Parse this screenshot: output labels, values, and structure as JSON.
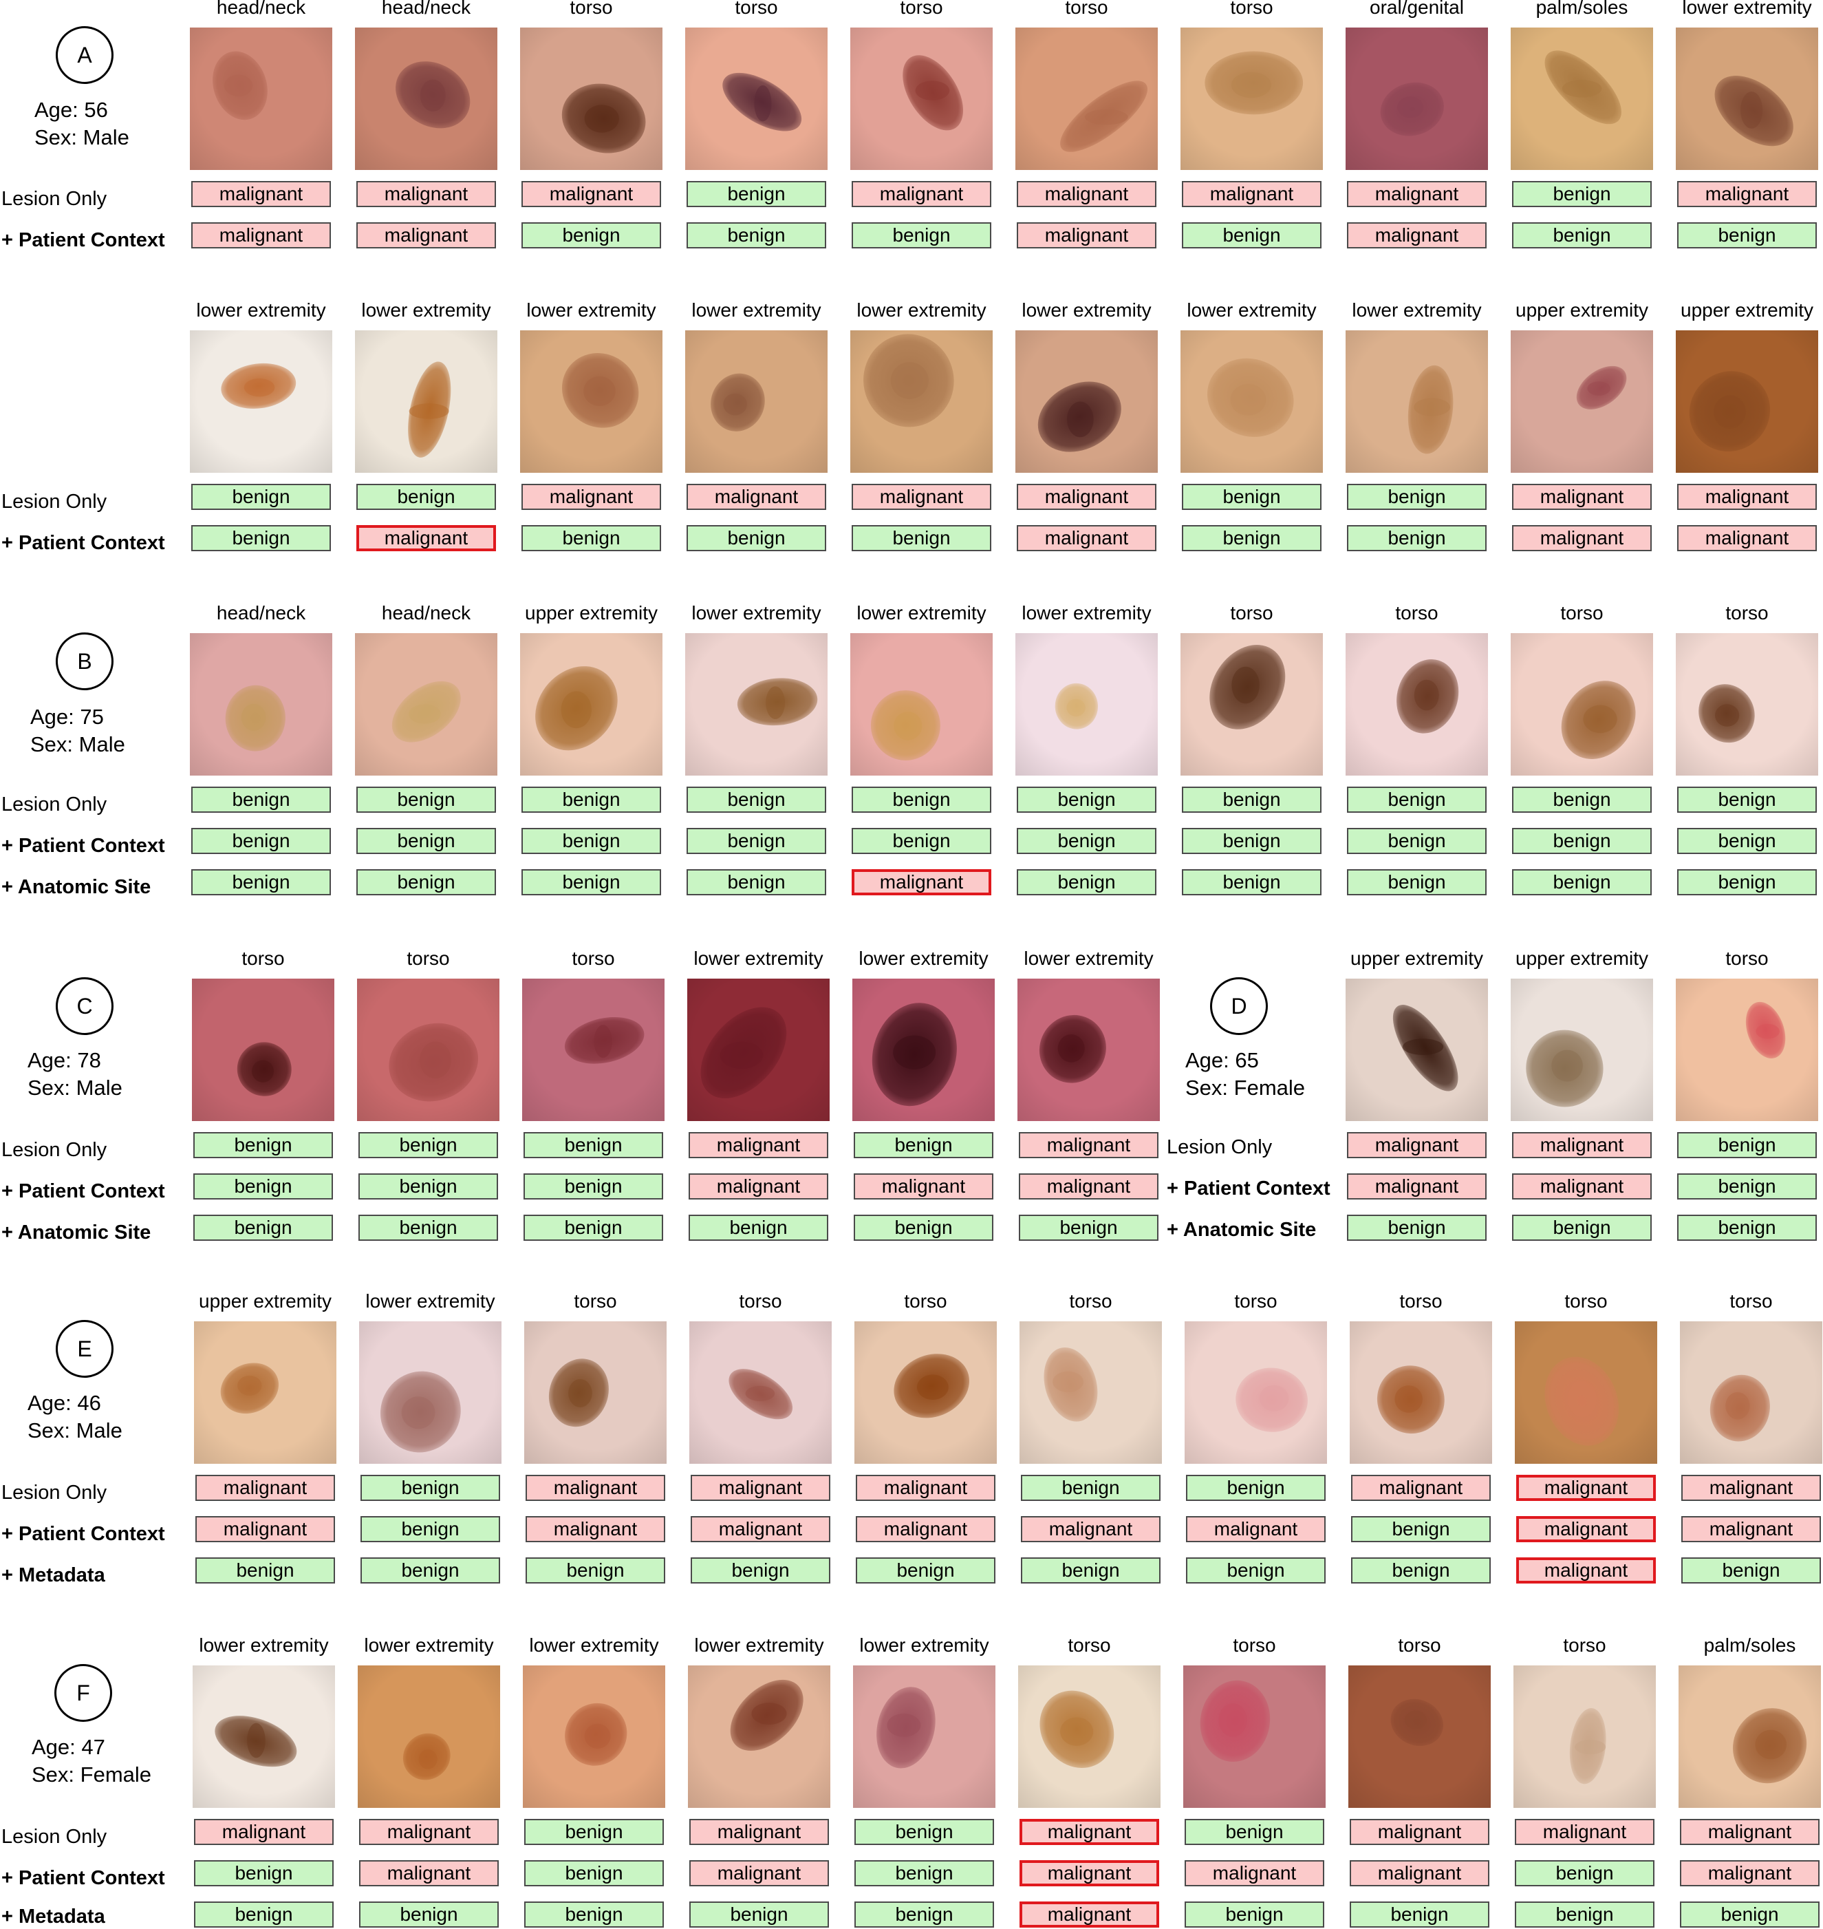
{
  "panels": [
    {
      "id": "A",
      "label": "A",
      "age": "Age: 56",
      "sex": "Sex: Male",
      "rows": [
        {
          "row_labels": [
            "Lesion Only",
            "+ Patient Context"
          ],
          "cases": [
            {
              "site": "head/neck",
              "skin": "#cf8775",
              "lesion": "#b16552",
              "preds": [
                "malignant",
                "malignant"
              ]
            },
            {
              "site": "head/neck",
              "skin": "#c9846e",
              "lesion": "#7b3e3e",
              "preds": [
                "malignant",
                "malignant"
              ]
            },
            {
              "site": "torso",
              "skin": "#d6a28c",
              "lesion": "#5c2d1a",
              "preds": [
                "malignant",
                "benign"
              ]
            },
            {
              "site": "torso",
              "skin": "#e9aa92",
              "lesion": "#5b2a36",
              "preds": [
                "benign",
                "benign"
              ]
            },
            {
              "site": "torso",
              "skin": "#e2a196",
              "lesion": "#8e3b33",
              "preds": [
                "malignant",
                "benign"
              ]
            },
            {
              "site": "torso",
              "skin": "#d99a78",
              "lesion": "#b06b4c",
              "preds": [
                "malignant",
                "malignant"
              ]
            },
            {
              "site": "torso",
              "skin": "#e1b489",
              "lesion": "#b7834f",
              "preds": [
                "malignant",
                "benign"
              ]
            },
            {
              "site": "oral/genital",
              "skin": "#a65563",
              "lesion": "#8d4453",
              "preds": [
                "malignant",
                "malignant"
              ]
            },
            {
              "site": "palm/soles",
              "skin": "#ddb27a",
              "lesion": "#a97840",
              "preds": [
                "benign",
                "benign"
              ]
            },
            {
              "site": "lower extremity",
              "skin": "#d4a37a",
              "lesion": "#7c4630",
              "preds": [
                "malignant",
                "benign"
              ]
            }
          ]
        },
        {
          "row_labels": [
            "Lesion Only",
            "+ Patient Context"
          ],
          "cases": [
            {
              "site": "lower extremity",
              "skin": "#f1ebe4",
              "lesion": "#c26e34",
              "preds": [
                "benign",
                "benign"
              ]
            },
            {
              "site": "lower extremity",
              "skin": "#eee6da",
              "lesion": "#b46a2a",
              "preds": [
                "benign",
                "malignant"
              ],
              "highlight": [
                false,
                true
              ]
            },
            {
              "site": "lower extremity",
              "skin": "#d9aa7f",
              "lesion": "#a46441",
              "preds": [
                "malignant",
                "benign"
              ]
            },
            {
              "site": "lower extremity",
              "skin": "#d6a77e",
              "lesion": "#8e5a3e",
              "preds": [
                "malignant",
                "benign"
              ]
            },
            {
              "site": "lower extremity",
              "skin": "#d7a97b",
              "lesion": "#a8754c",
              "preds": [
                "malignant",
                "benign"
              ]
            },
            {
              "site": "lower extremity",
              "skin": "#d4a386",
              "lesion": "#4d2220",
              "preds": [
                "malignant",
                "malignant"
              ]
            },
            {
              "site": "lower extremity",
              "skin": "#dcaf85",
              "lesion": "#c18d5d",
              "preds": [
                "benign",
                "benign"
              ]
            },
            {
              "site": "lower extremity",
              "skin": "#dbb08d",
              "lesion": "#b57d4c",
              "preds": [
                "benign",
                "benign"
              ]
            },
            {
              "site": "upper extremity",
              "skin": "#d8a79a",
              "lesion": "#9b4b50",
              "preds": [
                "malignant",
                "malignant"
              ]
            },
            {
              "site": "upper extremity",
              "skin": "#a65f2c",
              "lesion": "#8a4b21",
              "preds": [
                "malignant",
                "malignant"
              ]
            }
          ]
        }
      ]
    },
    {
      "id": "B",
      "label": "B",
      "age": "Age: 75",
      "sex": "Sex: Male",
      "rows": [
        {
          "row_labels": [
            "Lesion Only",
            "+ Patient Context",
            "+ Anatomic Site"
          ],
          "cases": [
            {
              "site": "head/neck",
              "skin": "#dfa7a5",
              "lesion": "#c59a5e",
              "preds": [
                "benign",
                "benign",
                "benign"
              ]
            },
            {
              "site": "head/neck",
              "skin": "#e3b39e",
              "lesion": "#cca66a",
              "preds": [
                "benign",
                "benign",
                "benign"
              ]
            },
            {
              "site": "upper extremity",
              "skin": "#ecc7b2",
              "lesion": "#a66a2c",
              "preds": [
                "benign",
                "benign",
                "benign"
              ]
            },
            {
              "site": "lower extremity",
              "skin": "#eed3cf",
              "lesion": "#8c5a2c",
              "preds": [
                "benign",
                "benign",
                "benign"
              ]
            },
            {
              "site": "lower extremity",
              "skin": "#e9aba7",
              "lesion": "#cf9a54",
              "preds": [
                "benign",
                "benign",
                "malignant"
              ],
              "highlight": [
                false,
                false,
                true
              ]
            },
            {
              "site": "lower extremity",
              "skin": "#f2dee5",
              "lesion": "#d8b173",
              "preds": [
                "benign",
                "benign",
                "benign"
              ]
            },
            {
              "site": "torso",
              "skin": "#eecdc0",
              "lesion": "#5a311c",
              "preds": [
                "benign",
                "benign",
                "benign"
              ]
            },
            {
              "site": "torso",
              "skin": "#f1d5d5",
              "lesion": "#6c3a24",
              "preds": [
                "benign",
                "benign",
                "benign"
              ]
            },
            {
              "site": "torso",
              "skin": "#f1d0c6",
              "lesion": "#9b6232",
              "preds": [
                "benign",
                "benign",
                "benign"
              ]
            },
            {
              "site": "torso",
              "skin": "#f2d9d2",
              "lesion": "#6b3d22",
              "preds": [
                "benign",
                "benign",
                "benign"
              ]
            }
          ]
        }
      ]
    },
    {
      "id": "C",
      "label": "C",
      "age": "Age: 78",
      "sex": "Sex: Male",
      "row_labels": [
        "Lesion Only",
        "+ Patient Context",
        "+ Anatomic Site"
      ],
      "cases": [
        {
          "site": "torso",
          "skin": "#c2646d",
          "lesion": "#4c1515",
          "preds": [
            "benign",
            "benign",
            "benign"
          ]
        },
        {
          "site": "torso",
          "skin": "#c8696b",
          "lesion": "#a34a47",
          "preds": [
            "benign",
            "benign",
            "benign"
          ]
        },
        {
          "site": "torso",
          "skin": "#bf6a7b",
          "lesion": "#7f2d36",
          "preds": [
            "benign",
            "benign",
            "benign"
          ]
        },
        {
          "site": "lower extremity",
          "skin": "#8e2b36",
          "lesion": "#6b1a24",
          "preds": [
            "malignant",
            "malignant",
            "benign"
          ]
        },
        {
          "site": "lower extremity",
          "skin": "#c25f74",
          "lesion": "#3d0e16",
          "preds": [
            "benign",
            "malignant",
            "benign"
          ]
        },
        {
          "site": "lower extremity",
          "skin": "#c7687a",
          "lesion": "#4f1319",
          "preds": [
            "malignant",
            "malignant",
            "benign"
          ]
        }
      ]
    },
    {
      "id": "D",
      "label": "D",
      "age": "Age: 65",
      "sex": "Sex: Female",
      "row_labels": [
        "Lesion Only",
        "+ Patient Context",
        "+ Anatomic Site"
      ],
      "cases": [
        {
          "site": "upper extremity",
          "skin": "#e5d3c9",
          "lesion": "#3b1d12",
          "preds": [
            "malignant",
            "malignant",
            "benign"
          ]
        },
        {
          "site": "upper extremity",
          "skin": "#ebe1db",
          "lesion": "#8a7052",
          "preds": [
            "malignant",
            "malignant",
            "benign"
          ]
        },
        {
          "site": "torso",
          "skin": "#f0c0a0",
          "lesion": "#d8545a",
          "preds": [
            "benign",
            "benign",
            "benign"
          ]
        }
      ]
    },
    {
      "id": "E",
      "label": "E",
      "age": "Age: 46",
      "sex": "Sex: Male",
      "row_labels": [
        "Lesion Only",
        "+ Patient Context",
        "+ Metadata"
      ],
      "cases": [
        {
          "site": "upper extremity",
          "skin": "#e9c39f",
          "lesion": "#b26c34",
          "preds": [
            "malignant",
            "malignant",
            "benign"
          ]
        },
        {
          "site": "lower extremity",
          "skin": "#ead3d5",
          "lesion": "#a06a62",
          "preds": [
            "benign",
            "benign",
            "benign"
          ]
        },
        {
          "site": "torso",
          "skin": "#e5cbc2",
          "lesion": "#7e4a25",
          "preds": [
            "malignant",
            "malignant",
            "benign"
          ]
        },
        {
          "site": "torso",
          "skin": "#e9cfcf",
          "lesion": "#9b5448",
          "preds": [
            "malignant",
            "malignant",
            "benign"
          ]
        },
        {
          "site": "torso",
          "skin": "#e8c7ad",
          "lesion": "#8e4514",
          "preds": [
            "malignant",
            "malignant",
            "benign"
          ]
        },
        {
          "site": "torso",
          "skin": "#ead6c6",
          "lesion": "#c6916f",
          "preds": [
            "benign",
            "malignant",
            "benign"
          ]
        },
        {
          "site": "torso",
          "skin": "#efd3cd",
          "lesion": "#e4a3a4",
          "preds": [
            "benign",
            "malignant",
            "benign"
          ]
        },
        {
          "site": "torso",
          "skin": "#e8cfc4",
          "lesion": "#a55a2a",
          "preds": [
            "malignant",
            "benign",
            "benign"
          ]
        },
        {
          "site": "torso",
          "skin": "#c2864e",
          "lesion": "#d27b58",
          "preds": [
            "malignant",
            "malignant",
            "malignant"
          ],
          "highlight": [
            true,
            true,
            true
          ]
        },
        {
          "site": "torso",
          "skin": "#e6d0c1",
          "lesion": "#b56b48",
          "preds": [
            "malignant",
            "malignant",
            "benign"
          ]
        }
      ]
    },
    {
      "id": "F",
      "label": "F",
      "age": "Age: 47",
      "sex": "Sex: Female",
      "row_labels": [
        "Lesion Only",
        "+ Patient Context",
        "+ Metadata"
      ],
      "cases": [
        {
          "site": "lower extremity",
          "skin": "#f1e8e0",
          "lesion": "#6b3c20",
          "preds": [
            "malignant",
            "benign",
            "benign"
          ]
        },
        {
          "site": "lower extremity",
          "skin": "#d6965b",
          "lesion": "#b46329",
          "preds": [
            "malignant",
            "malignant",
            "benign"
          ]
        },
        {
          "site": "lower extremity",
          "skin": "#e2a27a",
          "lesion": "#b45d38",
          "preds": [
            "benign",
            "benign",
            "benign"
          ]
        },
        {
          "site": "lower extremity",
          "skin": "#e2b499",
          "lesion": "#7d3a26",
          "preds": [
            "malignant",
            "malignant",
            "benign"
          ]
        },
        {
          "site": "lower extremity",
          "skin": "#dea4a1",
          "lesion": "#9b4e5a",
          "preds": [
            "benign",
            "benign",
            "benign"
          ]
        },
        {
          "site": "torso",
          "skin": "#ecdcc8",
          "lesion": "#b77838",
          "preds": [
            "malignant",
            "malignant",
            "malignant"
          ],
          "highlight": [
            true,
            true,
            true
          ]
        },
        {
          "site": "torso",
          "skin": "#c57a80",
          "lesion": "#c74e63",
          "preds": [
            "benign",
            "malignant",
            "benign"
          ]
        },
        {
          "site": "torso",
          "skin": "#a2583a",
          "lesion": "#8c4830",
          "preds": [
            "malignant",
            "malignant",
            "benign"
          ]
        },
        {
          "site": "torso",
          "skin": "#e8d2c0",
          "lesion": "#c9a588",
          "preds": [
            "malignant",
            "benign",
            "benign"
          ]
        },
        {
          "site": "palm/soles",
          "skin": "#e8c2a0",
          "lesion": "#9e5d32",
          "preds": [
            "malignant",
            "malignant",
            "benign"
          ]
        }
      ]
    }
  ]
}
